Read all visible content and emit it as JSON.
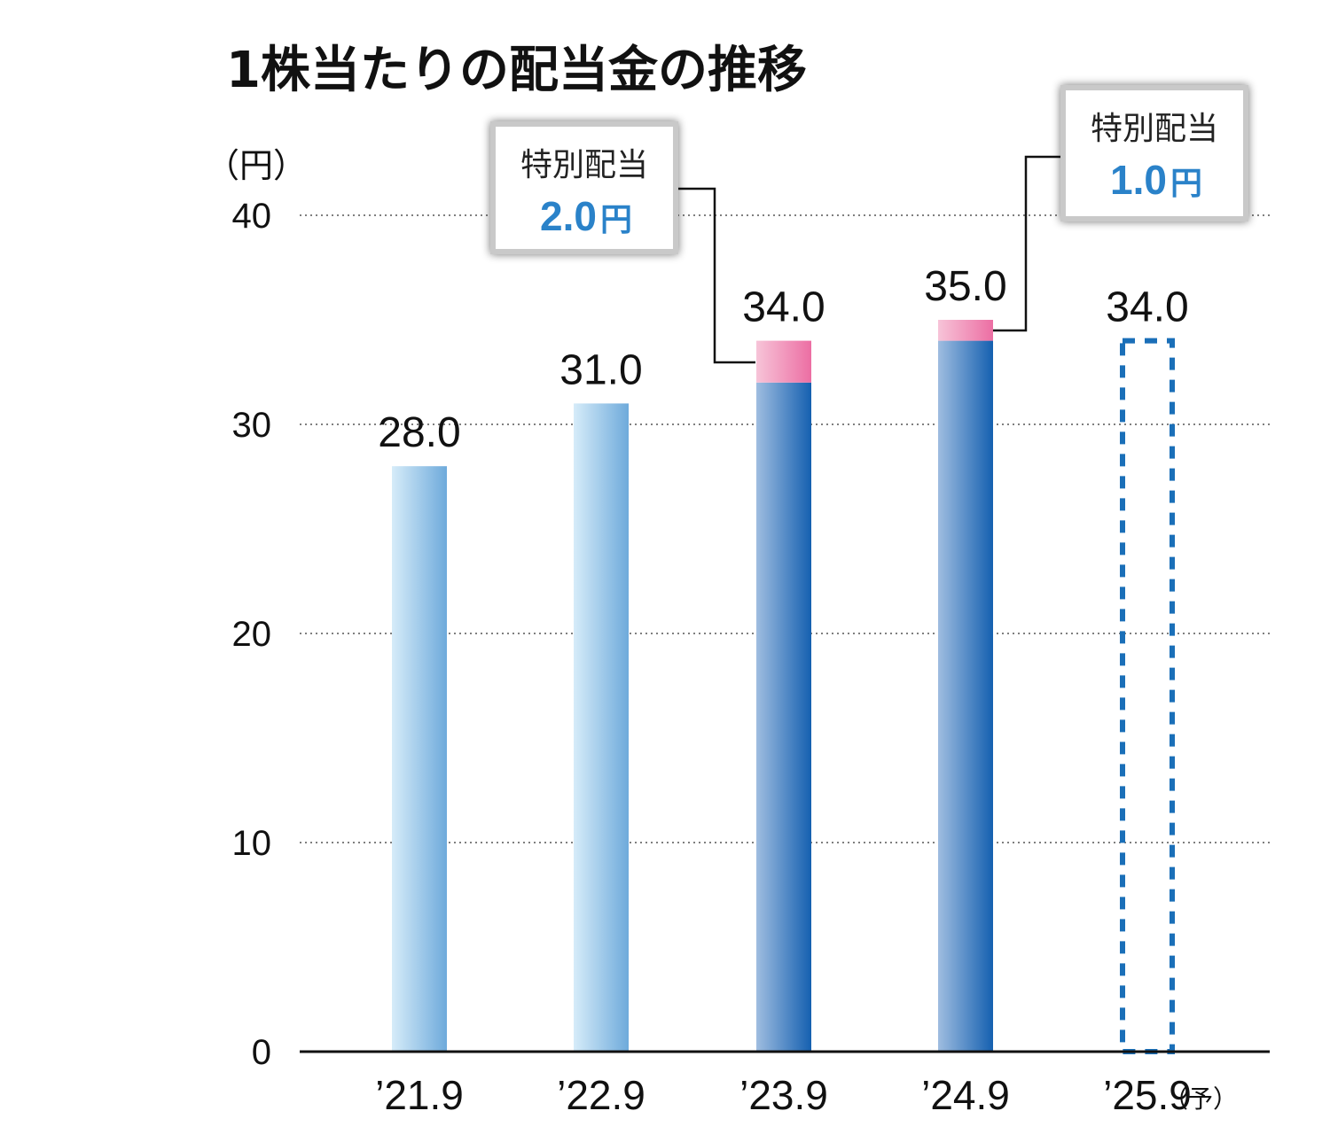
{
  "chart_data": {
    "type": "bar",
    "title": "1株当たりの配当金の推移",
    "unit_label": "（円）",
    "categories": [
      "’21.9",
      "’22.9",
      "’23.9",
      "’24.9",
      "’25.9"
    ],
    "forecast_mark": "（予）",
    "series": [
      {
        "values": [
          28.0,
          31.0,
          32.0,
          34.0,
          34.0
        ]
      },
      {
        "values": [
          0,
          0,
          2.0,
          1.0,
          0
        ]
      }
    ],
    "totals": [
      28.0,
      31.0,
      34.0,
      35.0,
      34.0
    ],
    "total_labels": [
      "28.0",
      "31.0",
      "34.0",
      "35.0",
      "34.0"
    ],
    "forecast_index": 4,
    "ylim": [
      0,
      40
    ],
    "yticks": [
      0,
      10,
      20,
      30,
      40
    ],
    "grid": true,
    "callouts": [
      {
        "label": "特別配当",
        "value": "2.0",
        "unit": "円",
        "bar_index": 2
      },
      {
        "label": "特別配当",
        "value": "1.0",
        "unit": "円",
        "bar_index": 3
      }
    ],
    "colors": {
      "light_bar_start": "#d6ecf9",
      "light_bar_end": "#6eaadb",
      "dark_bar_start": "#9fbde0",
      "dark_bar_end": "#1560b0",
      "special_start": "#f7c4d8",
      "special_end": "#ec6ea3",
      "forecast_outline": "#1a6fb8",
      "callout_value": "#2a82c9"
    }
  }
}
